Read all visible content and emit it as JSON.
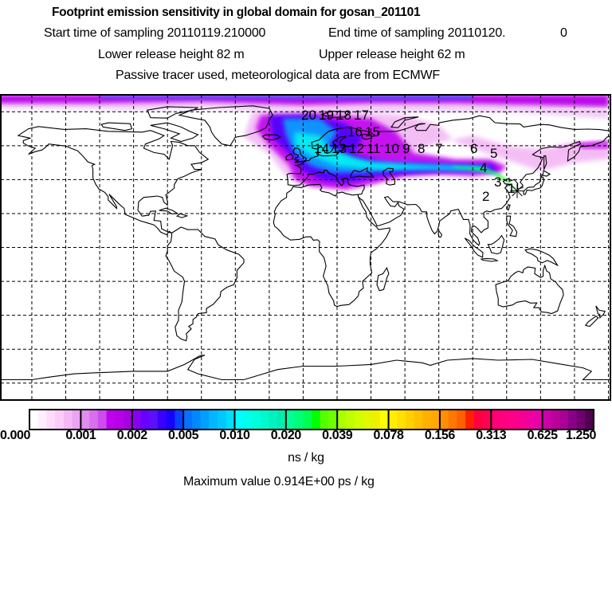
{
  "header": {
    "title": "Footprint emission sensitivity in global domain for gosan_201101",
    "start_time": "Start time of sampling 20110119.210000",
    "end_time": "End time of sampling 20110120.",
    "end_time_suffix": "0",
    "lower_release": "Lower release height   82 m",
    "upper_release": "Upper release height   62 m",
    "tracer_info": "Passive tracer used, meteorological data are from ECMWF"
  },
  "map": {
    "receptor": "gosan",
    "trajectory_labels": [
      "1",
      "2",
      "3",
      "4",
      "5",
      "6",
      "7",
      "8",
      "9",
      "10",
      "11",
      "12",
      "13",
      "14",
      "15",
      "16",
      "17",
      "18",
      "19",
      "20"
    ],
    "colors": {
      "coastline": "#000000",
      "grid": "#000000",
      "background": "#ffffff"
    }
  },
  "legend": {
    "tick_labels": [
      "0.000",
      "0.001",
      "0.002",
      "0.005",
      "0.010",
      "0.020",
      "0.039",
      "0.078",
      "0.156",
      "0.313",
      "0.625",
      "1.250"
    ],
    "unit": "ns / kg",
    "maximum": "Maximum value  0.914E+00 ps / kg",
    "segments": [
      [
        "#ffffff",
        "#ffeeff",
        "#ffddfa",
        "#fbccf8",
        "#f3b8f5",
        "#eba4f3"
      ],
      [
        "#e08cf0",
        "#d870ee",
        "#cc4cec",
        "#c000f0",
        "#b800e8",
        "#a800e0"
      ],
      [
        "#8800f0",
        "#6a00ff",
        "#5a10f8",
        "#3a00ff",
        "#1800ff",
        "#0a40ff"
      ],
      [
        "#0870ff",
        "#0088ff",
        "#00a0ff",
        "#00b8ff",
        "#00c8ff",
        "#00dcff"
      ],
      [
        "#00ffff",
        "#00ffee",
        "#00ffdd",
        "#00f8cc",
        "#00f0c0",
        "#00ecb0"
      ],
      [
        "#00ff99",
        "#00ff77",
        "#00ff55",
        "#00ff00",
        "#55ff00",
        "#70ff00"
      ],
      [
        "#aaff00",
        "#c0ff00",
        "#d0ff00",
        "#e0f800",
        "#eef000",
        "#ffff00"
      ],
      [
        "#ffee00",
        "#ffe000",
        "#ffd000",
        "#ffc000",
        "#ffb000",
        "#ffa800"
      ],
      [
        "#ff9000",
        "#ff7800",
        "#ff6000",
        "#ff2000",
        "#ff0040",
        "#ff0055"
      ],
      [
        "#ff0077",
        "#ff0080",
        "#ff0088",
        "#f80090",
        "#f000a0",
        "#e800a8"
      ],
      [
        "#cc00aa",
        "#bb0099",
        "#aa0099",
        "#880088",
        "#700070",
        "#500050"
      ]
    ]
  }
}
